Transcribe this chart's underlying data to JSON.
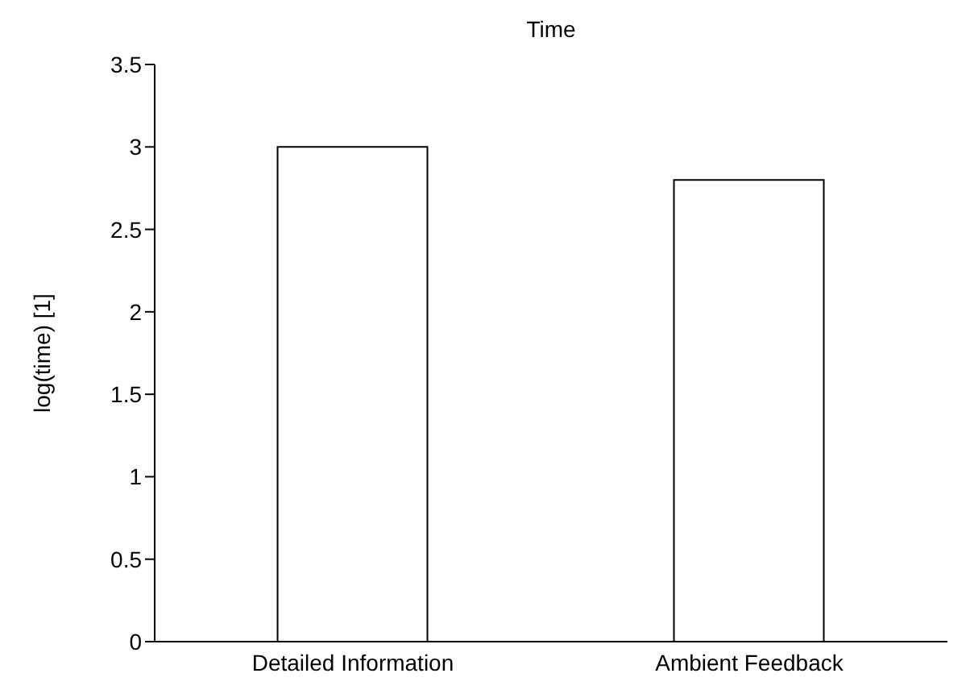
{
  "chart_data": {
    "type": "bar",
    "title": "Time",
    "ylabel": "log(time) [1]",
    "categories": [
      "Detailed Information",
      "Ambient Feedback"
    ],
    "values": [
      3.0,
      2.8
    ],
    "color": "#ffffff",
    "ylim": [
      0,
      3.5
    ],
    "yticks": [
      0,
      0.5,
      1,
      1.5,
      2,
      2.5,
      3,
      3.5
    ],
    "grid": false,
    "legend": false
  }
}
